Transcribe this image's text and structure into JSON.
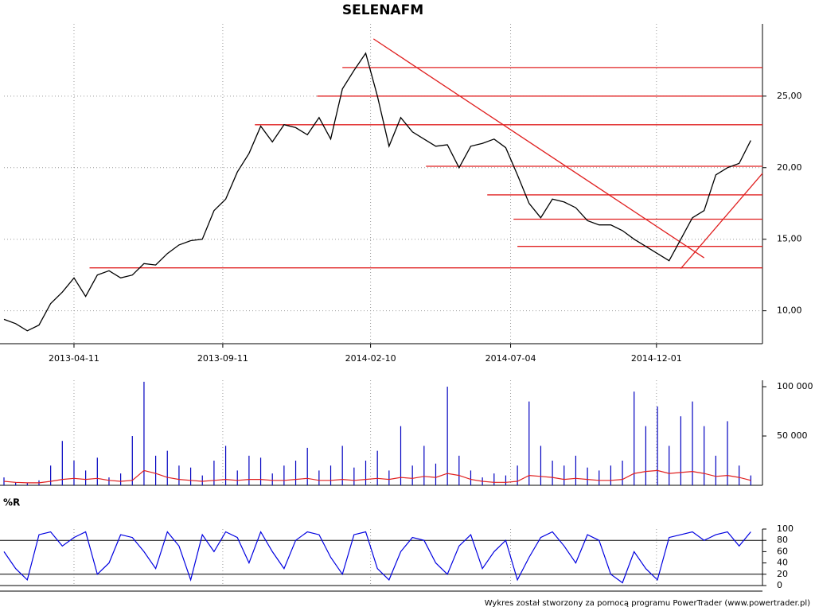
{
  "chart_data": [
    {
      "type": "line",
      "title": "SELENAFM",
      "color": "#000000",
      "x": [
        "2013-01-29",
        "2013-02-10",
        "2013-02-22",
        "2013-03-06",
        "2013-03-18",
        "2013-03-30",
        "2013-04-11",
        "2013-04-23",
        "2013-05-05",
        "2013-05-17",
        "2013-05-29",
        "2013-06-10",
        "2013-06-22",
        "2013-07-04",
        "2013-07-16",
        "2013-07-28",
        "2013-08-09",
        "2013-08-21",
        "2013-09-02",
        "2013-09-14",
        "2013-09-26",
        "2013-10-08",
        "2013-10-20",
        "2013-11-01",
        "2013-11-13",
        "2013-11-25",
        "2013-12-07",
        "2013-12-19",
        "2013-12-31",
        "2014-01-12",
        "2014-01-24",
        "2014-02-05",
        "2014-02-17",
        "2014-03-01",
        "2014-03-13",
        "2014-03-25",
        "2014-04-06",
        "2014-04-18",
        "2014-04-30",
        "2014-05-12",
        "2014-05-24",
        "2014-06-05",
        "2014-06-17",
        "2014-06-29",
        "2014-07-11",
        "2014-07-23",
        "2014-08-04",
        "2014-08-16",
        "2014-08-28",
        "2014-09-09",
        "2014-09-21",
        "2014-10-03",
        "2014-10-15",
        "2014-10-27",
        "2014-11-08",
        "2014-11-20",
        "2014-12-02",
        "2014-12-14",
        "2014-12-26",
        "2015-01-07",
        "2015-01-19",
        "2015-01-31",
        "2015-02-12",
        "2015-02-24",
        "2015-03-08"
      ],
      "values": [
        9.4,
        9.1,
        8.6,
        9.0,
        10.5,
        11.3,
        12.3,
        11.0,
        12.5,
        12.8,
        12.3,
        12.5,
        13.3,
        13.2,
        14.0,
        14.6,
        14.9,
        15.0,
        17.0,
        17.8,
        19.7,
        21.0,
        22.9,
        21.8,
        23.0,
        22.8,
        22.3,
        23.5,
        22.0,
        25.5,
        26.8,
        28.0,
        25.0,
        21.5,
        23.5,
        22.5,
        22.0,
        21.5,
        21.6,
        20.0,
        21.5,
        21.7,
        22.0,
        21.4,
        19.5,
        17.5,
        16.5,
        17.8,
        17.6,
        17.2,
        16.3,
        16.0,
        16.0,
        15.6,
        15.0,
        14.5,
        14.0,
        13.5,
        15.0,
        16.5,
        17.0,
        19.5,
        20.0,
        20.3,
        21.9
      ],
      "xlim": [
        "2013-01-29",
        "2015-03-20"
      ],
      "xticks": [
        "2013-04-11",
        "2013-09-11",
        "2014-02-10",
        "2014-07-04",
        "2014-12-01"
      ],
      "ylim": [
        7.7,
        30.05
      ],
      "yticks": [
        {
          "value": 10,
          "label": "10,00"
        },
        {
          "value": 15,
          "label": "15,00"
        },
        {
          "value": 20,
          "label": "20,00"
        },
        {
          "value": 25,
          "label": "25,00"
        }
      ],
      "grid": true,
      "hlines": {
        "color": "#e02020",
        "levels": [
          27,
          25,
          23,
          20.1,
          18.1,
          16.4,
          14.5,
          13
        ],
        "from": [
          "2014-01-12",
          "2013-12-17",
          "2013-10-14",
          "2014-04-08",
          "2014-06-10",
          "2014-07-07",
          "2014-07-11",
          "2013-04-27"
        ]
      },
      "trendlines": [
        {
          "x": [
            "2014-02-13",
            "2015-01-19"
          ],
          "y": [
            29.0,
            13.7
          ]
        },
        {
          "x": [
            "2014-12-26",
            "2015-03-20"
          ],
          "y": [
            12.95,
            19.6
          ]
        }
      ]
    },
    {
      "type": "volume",
      "series": [
        {
          "color": "#0000c0",
          "values": [
            8000,
            3000,
            2000,
            5000,
            20000,
            45000,
            25000,
            15000,
            28000,
            8000,
            12000,
            50000,
            105000,
            30000,
            35000,
            20000,
            18000,
            10000,
            25000,
            40000,
            15000,
            30000,
            28000,
            12000,
            20000,
            25000,
            38000,
            15000,
            20000,
            40000,
            18000,
            25000,
            35000,
            15000,
            60000,
            20000,
            40000,
            22000,
            100000,
            30000,
            15000,
            8000,
            12000,
            10000,
            20000,
            85000,
            40000,
            25000,
            20000,
            30000,
            18000,
            15000,
            20000,
            25000,
            95000,
            60000,
            80000,
            40000,
            70000,
            85000,
            60000,
            30000,
            65000,
            20000,
            10000
          ]
        },
        {
          "color": "#e02020",
          "values": [
            4000,
            3000,
            2500,
            2500,
            4000,
            6000,
            7000,
            6000,
            7000,
            5000,
            4000,
            5000,
            15000,
            12000,
            8000,
            6000,
            5000,
            4000,
            5000,
            6000,
            5000,
            6000,
            6000,
            5000,
            5000,
            6000,
            7000,
            5000,
            5000,
            6000,
            5000,
            6000,
            7000,
            6000,
            8000,
            7000,
            9000,
            8000,
            12000,
            10000,
            6000,
            4000,
            3000,
            3000,
            4000,
            10000,
            9000,
            8000,
            6000,
            7000,
            6000,
            5000,
            5000,
            6000,
            12000,
            14000,
            15000,
            12000,
            13000,
            14000,
            12000,
            9000,
            10000,
            8000,
            5000
          ]
        }
      ],
      "ylim": [
        0,
        106500
      ],
      "yticks": [
        {
          "value": 50000,
          "label": "50 000"
        },
        {
          "value": 100000,
          "label": "100 000"
        }
      ]
    },
    {
      "type": "oscillator",
      "title": "%R",
      "color": "#0000e0",
      "values": [
        60,
        30,
        10,
        90,
        95,
        70,
        85,
        95,
        20,
        40,
        90,
        85,
        60,
        30,
        95,
        70,
        10,
        90,
        60,
        95,
        85,
        40,
        95,
        60,
        30,
        80,
        95,
        90,
        50,
        20,
        90,
        95,
        30,
        10,
        60,
        85,
        80,
        40,
        20,
        70,
        90,
        30,
        60,
        80,
        10,
        50,
        85,
        95,
        70,
        40,
        90,
        80,
        20,
        5,
        60,
        30,
        10,
        85,
        90,
        95,
        80,
        90,
        95,
        70,
        95
      ],
      "ylim": [
        0,
        100
      ],
      "yticks": [
        0,
        20,
        40,
        60,
        80,
        100
      ],
      "levels": [
        20,
        80
      ]
    }
  ],
  "footer": "Wykres został stworzony za pomocą programu PowerTrader (www.powertrader.pl)"
}
